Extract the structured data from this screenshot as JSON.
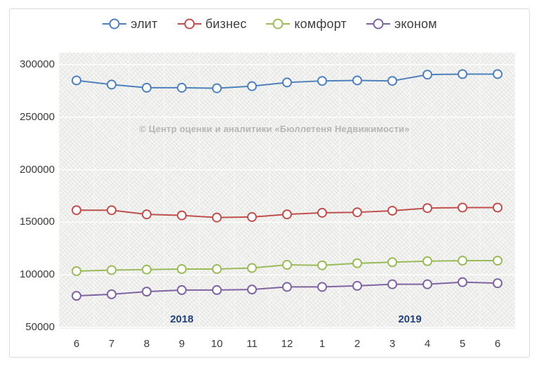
{
  "watermark": "© Центр оценки и аналитики «Бюллетеня Недвижимости»",
  "chart_data": {
    "type": "line",
    "title": "",
    "xlabel": "",
    "ylabel": "",
    "categories": [
      "6",
      "7",
      "8",
      "9",
      "10",
      "11",
      "12",
      "1",
      "2",
      "3",
      "4",
      "5",
      "6"
    ],
    "year_labels": [
      {
        "label": "2018",
        "span": [
          0,
          6
        ]
      },
      {
        "label": "2019",
        "span": [
          7,
          12
        ]
      }
    ],
    "y_ticks": [
      50000,
      100000,
      150000,
      200000,
      250000,
      300000
    ],
    "ylim": [
      50000,
      300000
    ],
    "grid": true,
    "legend_position": "top",
    "series": [
      {
        "id": "elit",
        "name": "элит",
        "color": "#4F81BD",
        "values": [
          285000,
          281000,
          278000,
          278000,
          277500,
          279500,
          283000,
          284500,
          285000,
          284500,
          290500,
          291000,
          291000
        ]
      },
      {
        "id": "business",
        "name": "бизнес",
        "color": "#C0504D",
        "values": [
          161500,
          161500,
          157500,
          156500,
          154500,
          155000,
          157500,
          159000,
          159500,
          161000,
          163500,
          164000,
          164000
        ]
      },
      {
        "id": "comfort",
        "name": "комфорт",
        "color": "#9BBB59",
        "values": [
          103500,
          104500,
          105000,
          105500,
          105500,
          106500,
          109500,
          109000,
          111000,
          112000,
          113000,
          113500,
          113500
        ]
      },
      {
        "id": "econom",
        "name": "эконом",
        "color": "#8064A2",
        "values": [
          80000,
          81500,
          84000,
          85500,
          85500,
          86000,
          88500,
          88500,
          89500,
          91000,
          91000,
          93000,
          92000
        ]
      }
    ],
    "colors": {
      "axis_text": "#3a3a3a",
      "year_label": "#24417e",
      "watermark": "#b6b6b6",
      "gridline": "#ffffff",
      "frame_border": "#dadada"
    }
  }
}
